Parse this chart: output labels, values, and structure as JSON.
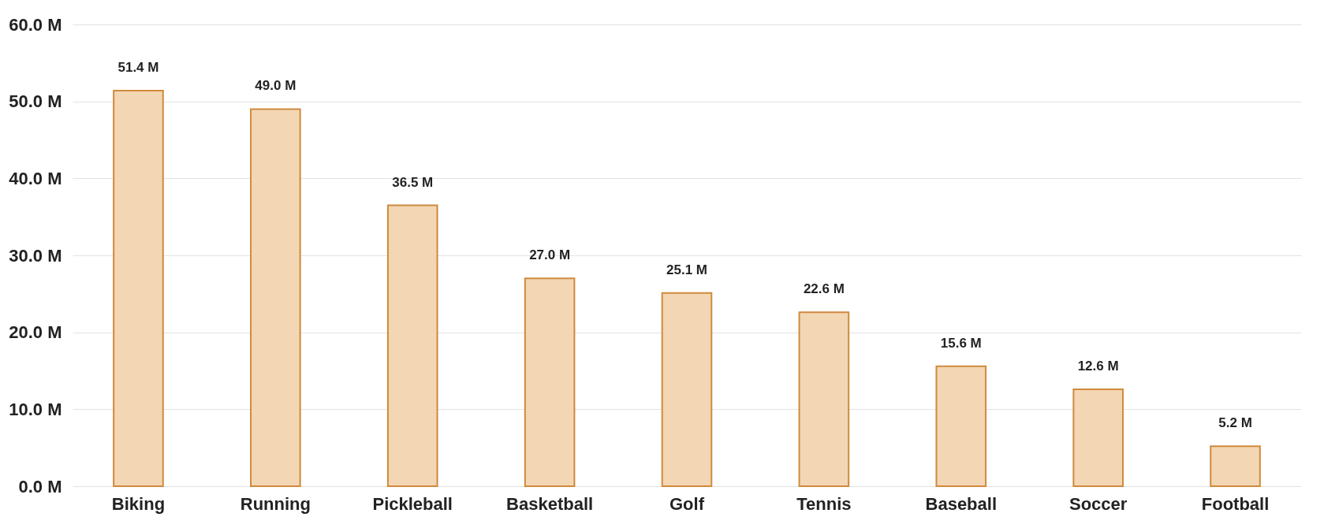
{
  "chart_data": {
    "type": "bar",
    "categories": [
      "Biking",
      "Running",
      "Pickleball",
      "Basketball",
      "Golf",
      "Tennis",
      "Baseball",
      "Soccer",
      "Football"
    ],
    "values": [
      51.4,
      49.0,
      36.5,
      27.0,
      25.1,
      22.6,
      15.6,
      12.6,
      5.2
    ],
    "value_labels": [
      "51.4 M",
      "49.0 M",
      "36.5 M",
      "27.0 M",
      "25.1 M",
      "22.6 M",
      "15.6 M",
      "12.6 M",
      "5.2 M"
    ],
    "color": "#f3d6b4",
    "ylim": [
      0,
      60
    ],
    "yticks": [
      {
        "value": 0,
        "label": "0.0 M"
      },
      {
        "value": 10,
        "label": "10.0 M"
      },
      {
        "value": 20,
        "label": "20.0 M"
      },
      {
        "value": 30,
        "label": "30.0 M"
      },
      {
        "value": 40,
        "label": "40.0 M"
      },
      {
        "value": 50,
        "label": "50.0 M"
      },
      {
        "value": 60,
        "label": "60.0 M"
      }
    ],
    "grid": "y"
  }
}
